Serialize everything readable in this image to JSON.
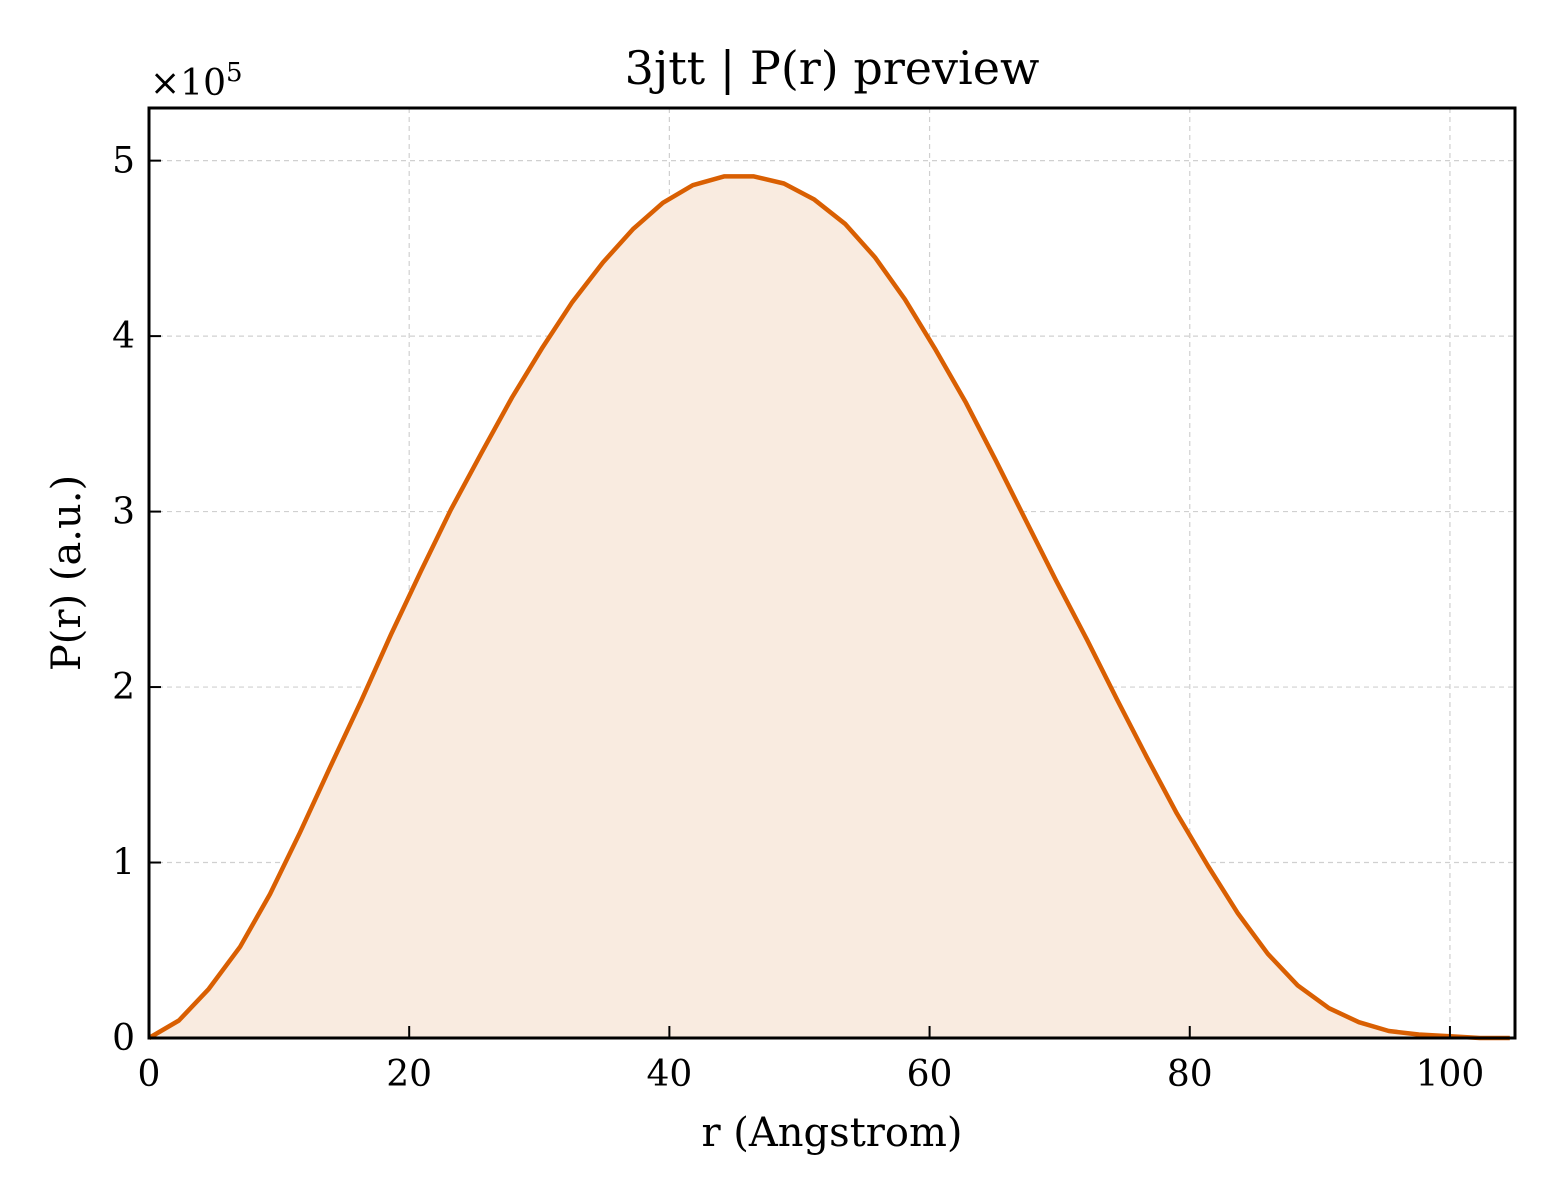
{
  "chart_data": {
    "type": "area",
    "title": "3jtt | P(r) preview",
    "xlabel": "r (Angstrom)",
    "ylabel": "P(r) (a.u.)",
    "y_multiplier_label": "×10",
    "y_multiplier_exponent": "5",
    "xlim": [
      0,
      105
    ],
    "ylim": [
      0,
      5.3
    ],
    "x_ticks": [
      0,
      20,
      40,
      60,
      80,
      100
    ],
    "y_ticks": [
      0,
      1,
      2,
      3,
      4,
      5
    ],
    "grid": true,
    "line_color": "#d95f02",
    "fill_color": "#f9ebe0",
    "series": [
      {
        "x": [
          0,
          2.3,
          4.6,
          7.0,
          9.3,
          11.6,
          13.9,
          16.3,
          18.6,
          20.9,
          23.2,
          25.6,
          27.9,
          30.2,
          32.5,
          34.9,
          37.2,
          39.5,
          41.8,
          44.2,
          46.5,
          48.8,
          51.1,
          53.5,
          55.8,
          58.1,
          60.4,
          62.8,
          65.1,
          67.4,
          69.7,
          72.1,
          74.4,
          76.7,
          79.0,
          81.4,
          83.7,
          86.0,
          88.3,
          90.7,
          93.0,
          95.3,
          97.6,
          100.0,
          102.3,
          104.6
        ],
        "values": [
          0.0,
          0.1,
          0.28,
          0.52,
          0.82,
          1.17,
          1.54,
          1.92,
          2.3,
          2.66,
          3.01,
          3.34,
          3.65,
          3.93,
          4.19,
          4.42,
          4.61,
          4.76,
          4.86,
          4.91,
          4.91,
          4.87,
          4.78,
          4.64,
          4.45,
          4.21,
          3.93,
          3.62,
          3.29,
          2.95,
          2.61,
          2.27,
          1.93,
          1.6,
          1.28,
          0.98,
          0.71,
          0.48,
          0.3,
          0.17,
          0.09,
          0.04,
          0.02,
          0.01,
          0.0,
          0.0
        ]
      }
    ]
  }
}
